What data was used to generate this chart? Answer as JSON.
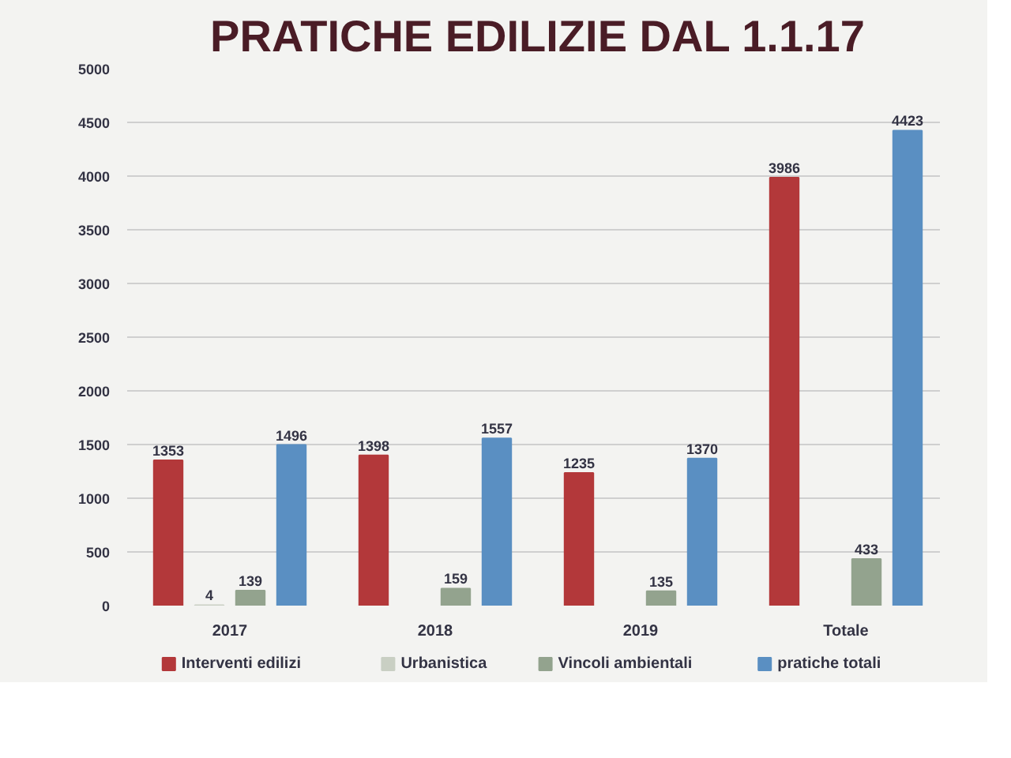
{
  "chart_data": {
    "type": "bar",
    "title": "PRATICHE EDILIZIE DAL 1.1.17",
    "categories": [
      "2017",
      "2018",
      "2019",
      "Totale"
    ],
    "series": [
      {
        "name": "Interventi edilizi",
        "color": "#b3383a",
        "values": [
          1353,
          1398,
          1235,
          3986
        ]
      },
      {
        "name": "Urbanistica",
        "color": "#c9cfc3",
        "values": [
          4,
          null,
          null,
          null
        ]
      },
      {
        "name": "Vincoli ambientali",
        "color": "#93a38e",
        "values": [
          139,
          159,
          135,
          433
        ]
      },
      {
        "name": "pratiche totali",
        "color": "#5a8fc2",
        "values": [
          1496,
          1557,
          1370,
          4423
        ]
      }
    ],
    "ylim": [
      0,
      5000
    ],
    "yticks": [
      0,
      500,
      1000,
      1500,
      2000,
      2500,
      3000,
      3500,
      4000,
      4500,
      5000
    ],
    "grid": "y",
    "legend": "bottom",
    "data_labels": true
  }
}
